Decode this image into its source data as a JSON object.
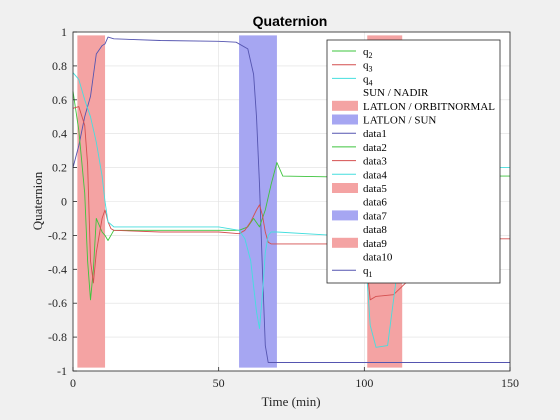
{
  "chart_data": {
    "type": "line",
    "title": "Quaternion",
    "xlabel": "Time (min)",
    "ylabel": "Quaternion",
    "xlim": [
      0,
      150
    ],
    "ylim": [
      -1,
      1
    ],
    "xticks": [
      "0",
      "50",
      "100",
      "150"
    ],
    "yticks": [
      "-1",
      "-0.8",
      "-0.6",
      "-0.4",
      "-0.2",
      "0",
      "0.2",
      "0.4",
      "0.6",
      "0.8",
      "1"
    ],
    "grid": true,
    "legend_position": "top-right",
    "regions": [
      {
        "name": "LATLON / ORBITNORMAL",
        "color": "#f4a3a3",
        "x": [
          1.5,
          11
        ]
      },
      {
        "name": "LATLON / SUN",
        "color": "#a6a6f2",
        "x": [
          57,
          70
        ]
      },
      {
        "name": "LATLON / ORBITNORMAL",
        "color": "#f4a3a3",
        "x": [
          101,
          113
        ]
      }
    ],
    "series": [
      {
        "name": "q1",
        "color": "#5555b0",
        "x": [
          0,
          2,
          4,
          6,
          8,
          10,
          11,
          12,
          14,
          30,
          50,
          56,
          60,
          62,
          63,
          64,
          65,
          66,
          67,
          70,
          90,
          110,
          130,
          150
        ],
        "y": [
          0.2,
          0.33,
          0.5,
          0.62,
          0.87,
          0.92,
          0.93,
          0.97,
          0.96,
          0.95,
          0.945,
          0.94,
          0.9,
          0.75,
          0.5,
          0.1,
          -0.4,
          -0.85,
          -0.95,
          -0.95,
          -0.95,
          -0.95,
          -0.95,
          -0.95
        ]
      },
      {
        "name": "q2",
        "color": "#3ec43e",
        "x": [
          0,
          2,
          4,
          5,
          6,
          7,
          8,
          10,
          11,
          12,
          14,
          30,
          50,
          57,
          60,
          62,
          64,
          66,
          68,
          70,
          72,
          90,
          110,
          130,
          150
        ],
        "y": [
          0.65,
          0.42,
          0.05,
          -0.35,
          -0.58,
          -0.4,
          -0.1,
          -0.18,
          -0.2,
          -0.23,
          -0.17,
          -0.17,
          -0.17,
          -0.17,
          -0.15,
          -0.1,
          -0.15,
          -0.05,
          0.1,
          0.23,
          0.15,
          0.145,
          0.15,
          0.15,
          0.15
        ]
      },
      {
        "name": "q3",
        "color": "#d44f4f",
        "x": [
          0,
          2,
          4,
          5,
          6,
          7,
          8,
          10,
          11,
          12,
          13,
          14,
          30,
          50,
          57,
          59,
          61,
          63,
          64,
          65,
          66,
          67,
          68,
          70,
          90,
          100,
          102,
          104,
          110,
          130,
          150
        ],
        "y": [
          0.55,
          0.56,
          0.45,
          0.22,
          -0.35,
          -0.48,
          -0.3,
          -0.1,
          -0.05,
          -0.12,
          -0.16,
          -0.17,
          -0.18,
          -0.18,
          -0.19,
          -0.17,
          -0.12,
          -0.05,
          -0.02,
          -0.08,
          -0.18,
          -0.24,
          -0.25,
          -0.25,
          -0.25,
          -0.23,
          -0.58,
          -0.56,
          -0.55,
          -0.22,
          -0.22
        ]
      },
      {
        "name": "q4",
        "color": "#45dede",
        "x": [
          0,
          1,
          2,
          4,
          6,
          8,
          10,
          11,
          12,
          14,
          30,
          50,
          57,
          59,
          61,
          62,
          63,
          64,
          65,
          66,
          67,
          68,
          70,
          90,
          100,
          102,
          104,
          108,
          111,
          113,
          115,
          130,
          150
        ],
        "y": [
          0.76,
          0.74,
          0.72,
          0.6,
          0.5,
          0.35,
          0.15,
          0.0,
          -0.12,
          -0.15,
          -0.15,
          -0.15,
          -0.17,
          -0.22,
          -0.35,
          -0.5,
          -0.65,
          -0.75,
          -0.55,
          -0.3,
          -0.2,
          -0.18,
          -0.18,
          -0.2,
          -0.22,
          -0.73,
          -0.86,
          -0.85,
          -0.45,
          -0.22,
          0.2,
          0.2,
          0.2
        ]
      }
    ],
    "legend_entries": [
      "q2",
      "q3",
      "q4",
      "SUN / NADIR",
      "LATLON / ORBITNORMAL",
      "LATLON / SUN",
      "data1",
      "data2",
      "data3",
      "data4",
      "data5",
      "data6",
      "data7",
      "data8",
      "data9",
      "data10",
      "q1"
    ]
  },
  "legend_items": [
    {
      "base": "q",
      "sub": "2",
      "kind": "line",
      "color": "#3ec43e"
    },
    {
      "base": "q",
      "sub": "3",
      "kind": "line",
      "color": "#d44f4f"
    },
    {
      "base": "q",
      "sub": "4",
      "kind": "line",
      "color": "#45dede"
    },
    {
      "base": "SUN / NADIR",
      "sub": "",
      "kind": "none",
      "color": ""
    },
    {
      "base": "LATLON / ORBITNORMAL",
      "sub": "",
      "kind": "patch",
      "color": "#f4a3a3"
    },
    {
      "base": "LATLON / SUN",
      "sub": "",
      "kind": "patch",
      "color": "#a6a6f2"
    },
    {
      "base": "data1",
      "sub": "",
      "kind": "line",
      "color": "#5555b0"
    },
    {
      "base": "data2",
      "sub": "",
      "kind": "line",
      "color": "#3ec43e"
    },
    {
      "base": "data3",
      "sub": "",
      "kind": "line",
      "color": "#d44f4f"
    },
    {
      "base": "data4",
      "sub": "",
      "kind": "line",
      "color": "#45dede"
    },
    {
      "base": "data5",
      "sub": "",
      "kind": "patch",
      "color": "#f4a3a3"
    },
    {
      "base": "data6",
      "sub": "",
      "kind": "none",
      "color": ""
    },
    {
      "base": "data7",
      "sub": "",
      "kind": "patch",
      "color": "#a6a6f2"
    },
    {
      "base": "data8",
      "sub": "",
      "kind": "none",
      "color": ""
    },
    {
      "base": "data9",
      "sub": "",
      "kind": "patch",
      "color": "#f4a3a3"
    },
    {
      "base": "data10",
      "sub": "",
      "kind": "none",
      "color": ""
    },
    {
      "base": "q",
      "sub": "1",
      "kind": "line",
      "color": "#5555b0"
    }
  ]
}
